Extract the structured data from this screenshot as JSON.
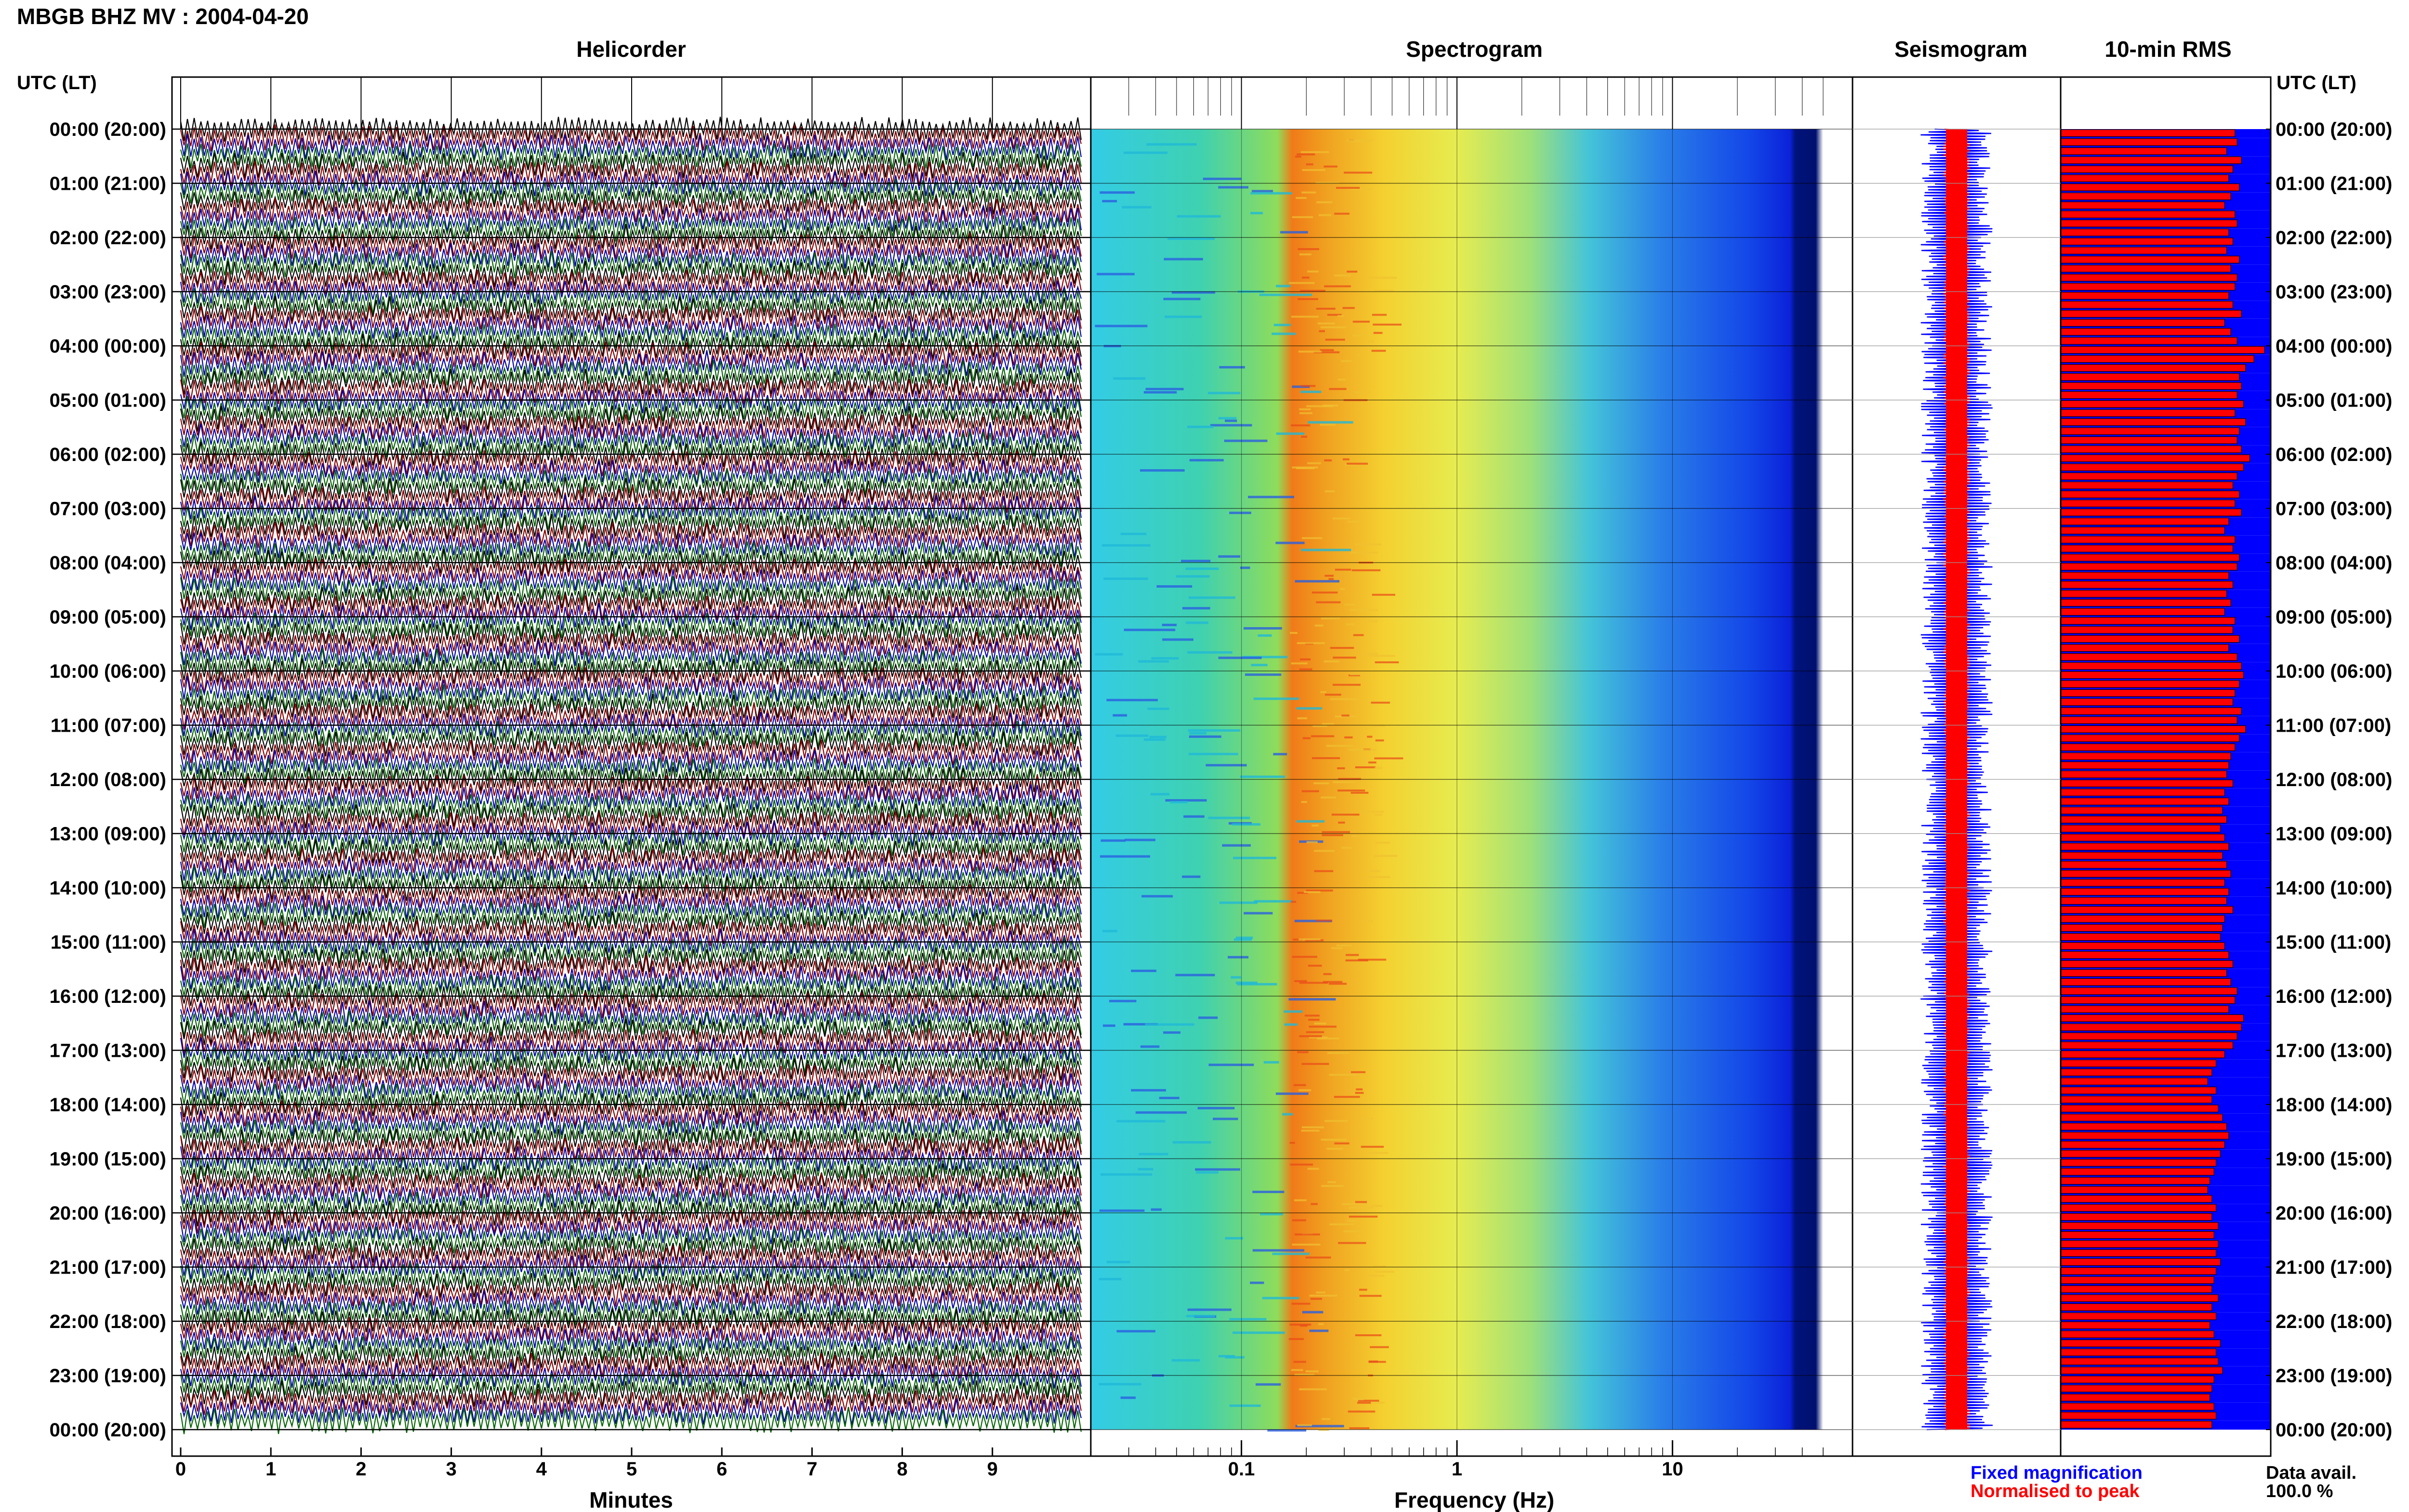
{
  "header": {
    "title": "MBGB BHZ MV : 2004-04-20"
  },
  "panels": {
    "helicorder": "Helicorder",
    "spectrogram": "Spectrogram",
    "seismogram": "Seismogram",
    "rms": "10-min RMS"
  },
  "axis": {
    "time_label_left": "UTC (LT)",
    "time_label_right": "UTC (LT)",
    "minutes_label": "Minutes",
    "frequency_label": "Frequency (Hz)"
  },
  "legend": {
    "fixed": "Fixed magnification",
    "normalised": "Normalised to peak",
    "fixed_color": "#0000ff",
    "normalised_color": "#ff0000"
  },
  "data_avail": {
    "label": "Data avail.",
    "value": "100.0 %"
  },
  "chart_data": [
    {
      "type": "line",
      "panel": "Helicorder",
      "xlabel": "Minutes",
      "x_ticks": [
        "0",
        "1",
        "2",
        "3",
        "4",
        "5",
        "6",
        "7",
        "8",
        "9"
      ],
      "xlim": [
        0,
        10
      ],
      "y_ticks": [
        "00:00 (20:00)",
        "01:00 (21:00)",
        "02:00 (22:00)",
        "03:00 (23:00)",
        "04:00 (00:00)",
        "05:00 (01:00)",
        "06:00 (02:00)",
        "07:00 (03:00)",
        "08:00 (04:00)",
        "09:00 (05:00)",
        "10:00 (06:00)",
        "11:00 (07:00)",
        "12:00 (08:00)",
        "13:00 (09:00)",
        "14:00 (10:00)",
        "15:00 (11:00)",
        "16:00 (12:00)",
        "17:00 (13:00)",
        "18:00 (14:00)",
        "19:00 (15:00)",
        "20:00 (16:00)",
        "21:00 (17:00)",
        "22:00 (18:00)",
        "23:00 (19:00)",
        "00:00 (20:00)"
      ],
      "lines_per_hour": 6,
      "line_colors": [
        "#000000",
        "#8b0000",
        "#0000aa",
        "#006400"
      ]
    },
    {
      "type": "heatmap",
      "panel": "Spectrogram",
      "xlabel": "Frequency (Hz)",
      "x_scale": "log",
      "x_ticks": [
        "0.1",
        "1",
        "10"
      ],
      "xlim": [
        0.02,
        50
      ],
      "peak_frequency_hz": 0.25
    },
    {
      "type": "line",
      "panel": "Seismogram",
      "series": [
        {
          "name": "Fixed magnification",
          "color": "#0000ff"
        },
        {
          "name": "Normalised to peak",
          "color": "#ff0000"
        }
      ]
    },
    {
      "type": "bar",
      "panel": "10-min RMS",
      "bars_per_hour": 6,
      "relative_values": [
        0.83,
        0.84,
        0.79,
        0.86,
        0.82,
        0.8,
        0.85,
        0.81,
        0.78,
        0.83,
        0.84,
        0.8,
        0.82,
        0.79,
        0.85,
        0.81,
        0.84,
        0.83,
        0.8,
        0.82,
        0.86,
        0.78,
        0.81,
        0.84,
        0.97,
        0.92,
        0.88,
        0.85,
        0.86,
        0.84,
        0.87,
        0.83,
        0.88,
        0.85,
        0.84,
        0.86,
        0.9,
        0.87,
        0.84,
        0.82,
        0.85,
        0.83,
        0.86,
        0.8,
        0.78,
        0.83,
        0.82,
        0.85,
        0.84,
        0.8,
        0.82,
        0.79,
        0.81,
        0.78,
        0.83,
        0.82,
        0.85,
        0.8,
        0.84,
        0.86,
        0.87,
        0.85,
        0.83,
        0.82,
        0.86,
        0.84,
        0.88,
        0.85,
        0.83,
        0.81,
        0.8,
        0.79,
        0.82,
        0.78,
        0.8,
        0.77,
        0.79,
        0.76,
        0.78,
        0.8,
        0.77,
        0.79,
        0.81,
        0.78,
        0.8,
        0.79,
        0.82,
        0.78,
        0.77,
        0.76,
        0.78,
        0.8,
        0.82,
        0.79,
        0.81,
        0.84,
        0.83,
        0.8,
        0.87,
        0.86,
        0.84,
        0.82,
        0.78,
        0.74,
        0.72,
        0.7,
        0.74,
        0.72,
        0.75,
        0.77,
        0.79,
        0.8,
        0.78,
        0.76,
        0.74,
        0.73,
        0.71,
        0.7,
        0.72,
        0.74,
        0.72,
        0.75,
        0.73,
        0.75,
        0.74,
        0.76,
        0.74,
        0.73,
        0.72,
        0.75,
        0.72,
        0.74,
        0.71,
        0.73,
        0.76,
        0.74,
        0.75,
        0.77,
        0.73,
        0.72,
        0.71,
        0.73,
        0.74,
        0.72
      ]
    }
  ]
}
